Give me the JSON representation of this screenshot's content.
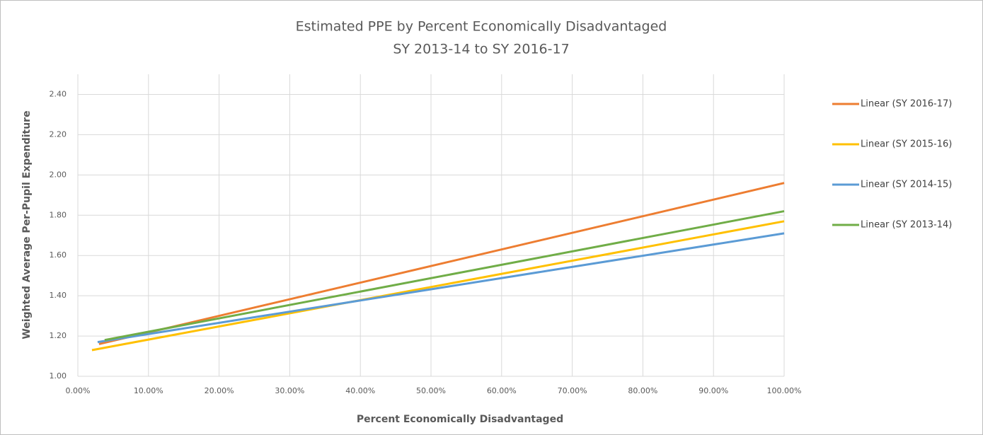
{
  "chart_data": {
    "type": "line",
    "title": [
      "Estimated PPE by Percent Economically Disadvantaged",
      "SY 2013-14 to SY 2016-17"
    ],
    "x_label": "Percent Economically Disadvantaged",
    "y_label": "Weighted Average Per-Pupil Expenditure",
    "series": [
      {
        "name": "Linear (SY 2016-17)",
        "color": "#ED7D31",
        "x": [
          3,
          100
        ],
        "values": [
          1.16,
          1.96
        ]
      },
      {
        "name": "Linear (SY 2015-16)",
        "color": "#FFC000",
        "x": [
          2,
          100
        ],
        "values": [
          1.13,
          1.77
        ]
      },
      {
        "name": "Linear (SY 2014-15)",
        "color": "#5B9BD5",
        "x": [
          2.8,
          100
        ],
        "values": [
          1.17,
          1.71
        ]
      },
      {
        "name": "Linear (SY 2013-14)",
        "color": "#70AD47",
        "x": [
          3.8,
          100
        ],
        "values": [
          1.18,
          1.82
        ]
      }
    ],
    "xlim": [
      0,
      100
    ],
    "xticks": [
      {
        "value": 0,
        "label": "0.00%"
      },
      {
        "value": 10,
        "label": "10.00%"
      },
      {
        "value": 20,
        "label": "20.00%"
      },
      {
        "value": 30,
        "label": "30.00%"
      },
      {
        "value": 40,
        "label": "40.00%"
      },
      {
        "value": 50,
        "label": "50.00%"
      },
      {
        "value": 60,
        "label": "60.00%"
      },
      {
        "value": 70,
        "label": "70.00%"
      },
      {
        "value": 80,
        "label": "80.00%"
      },
      {
        "value": 90,
        "label": "90.00%"
      },
      {
        "value": 100,
        "label": "100.00%"
      }
    ],
    "ylim": [
      1,
      2.5
    ],
    "yticks": [
      {
        "value": 1,
        "label": "1.00"
      },
      {
        "value": 1.2,
        "label": "1.20"
      },
      {
        "value": 1.4,
        "label": "1.40"
      },
      {
        "value": 1.6,
        "label": "1.60"
      },
      {
        "value": 1.8,
        "label": "1.80"
      },
      {
        "value": 2,
        "label": "2.00"
      },
      {
        "value": 2.2,
        "label": "2.20"
      },
      {
        "value": 2.4,
        "label": "2.40"
      }
    ],
    "grid": true,
    "legend": "right"
  }
}
